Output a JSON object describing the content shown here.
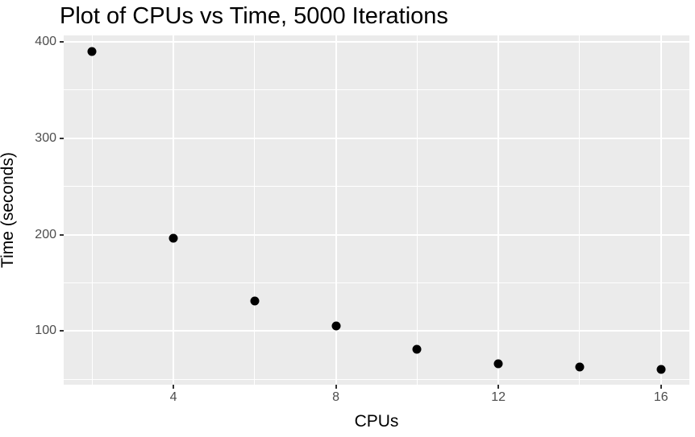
{
  "chart_data": {
    "type": "scatter",
    "title": "Plot of CPUs vs Time, 5000 Iterations",
    "xlabel": "CPUs",
    "ylabel": "Time (seconds)",
    "x": [
      2,
      4,
      6,
      8,
      10,
      12,
      14,
      16
    ],
    "y": [
      390,
      196,
      131,
      105,
      81,
      66,
      63,
      60
    ],
    "x_ticks": [
      4,
      8,
      12,
      16
    ],
    "x_minor_breaks": [
      2,
      6,
      10,
      14
    ],
    "y_ticks": [
      100,
      200,
      300,
      400
    ],
    "y_minor_breaks": [
      50,
      150,
      250,
      350
    ],
    "xlim": [
      1.3,
      16.7
    ],
    "ylim": [
      44.5,
      406.5
    ],
    "grid": true,
    "legend_position": "none",
    "style": {
      "panel_bg": "#EBEBEB",
      "grid_color": "#FFFFFF",
      "point_color": "#000000",
      "tick_label_color": "#4D4D4D",
      "tick_mark_color": "#333333",
      "title_color": "#000000"
    }
  }
}
